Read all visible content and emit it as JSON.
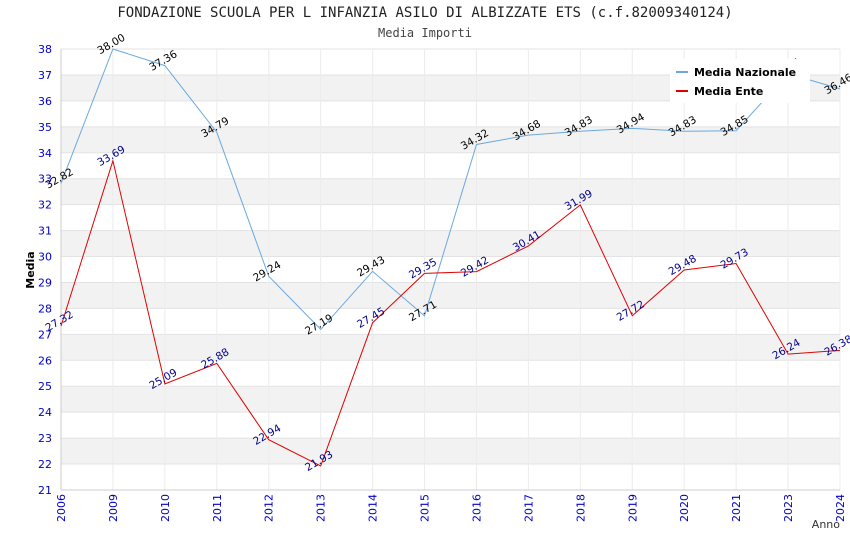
{
  "chart_data": {
    "type": "line",
    "title": "FONDAZIONE SCUOLA PER L INFANZIA ASILO DI ALBIZZATE ETS (c.f.82009340124)",
    "subtitle": "Media Importi",
    "xlabel": "Anno",
    "ylabel": "Media",
    "ylim": [
      21,
      38
    ],
    "yticks": [
      21,
      22,
      23,
      24,
      25,
      26,
      27,
      28,
      29,
      30,
      31,
      32,
      33,
      34,
      35,
      36,
      37,
      38
    ],
    "categories": [
      "2006",
      "2009",
      "2010",
      "2011",
      "2012",
      "2013",
      "2014",
      "2015",
      "2016",
      "2017",
      "2018",
      "2019",
      "2020",
      "2021",
      "2023",
      "2024"
    ],
    "grid": "horizontal alternating bands",
    "legend_position": "top-right",
    "series": [
      {
        "name": "Media Nazionale",
        "color": "#6aa9e0",
        "label_color": "#000000",
        "values": [
          32.82,
          38.0,
          37.36,
          34.79,
          29.24,
          27.19,
          29.43,
          27.71,
          34.32,
          34.68,
          34.83,
          34.94,
          34.83,
          34.85,
          37.05,
          36.46
        ]
      },
      {
        "name": "Media Ente",
        "color": "#e00000",
        "label_color": "#00008b",
        "values": [
          27.32,
          33.69,
          25.09,
          25.88,
          22.94,
          21.93,
          27.45,
          29.35,
          29.42,
          30.41,
          31.99,
          27.72,
          29.48,
          29.73,
          26.24,
          26.38
        ]
      }
    ]
  }
}
